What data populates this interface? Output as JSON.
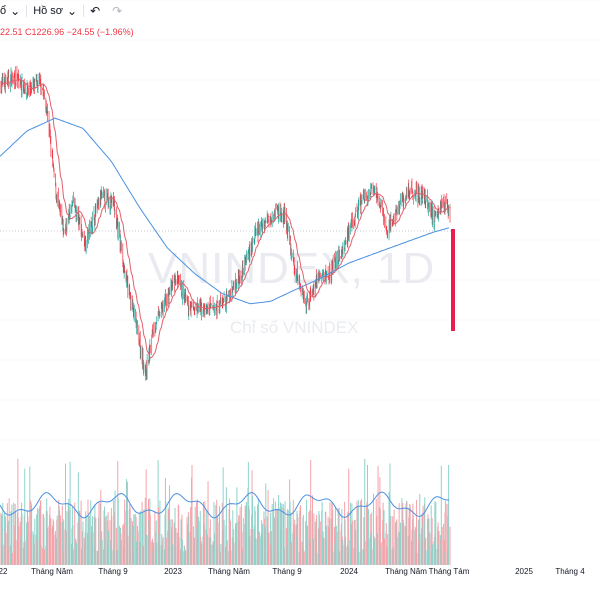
{
  "toolbar": {
    "interval_label": "ổ",
    "profile_label": "Hồ sơ"
  },
  "ohlc": {
    "prefix_value": "22.51",
    "close_label": "C1226.96",
    "change": "−24.55 (−1.96%)"
  },
  "watermark": {
    "symbol": "VNINDEX, 1D",
    "description": "Chỉ số VNINDEX"
  },
  "colors": {
    "up": "#26a69a",
    "down": "#f23645",
    "ma_short": "#e0606b",
    "ma_long": "#4a90e2",
    "volume_ma": "#4a90e2",
    "grid": "#e0e3eb",
    "current_marker": "#e91e4d"
  },
  "chart_data": {
    "type": "candlestick",
    "symbol": "VNINDEX",
    "interval": "1D",
    "x_ticks": [
      "22",
      "Tháng Năm",
      "Tháng 9",
      "2023",
      "Tháng Năm",
      "Tháng 9",
      "2024",
      "Tháng Năm",
      "Tháng Tám",
      "2025",
      "Tháng 4"
    ],
    "last_close": 1226.96,
    "change": -24.55,
    "change_pct": -1.96,
    "price_path": [
      {
        "date": "2022-01-01",
        "price": 1490
      },
      {
        "date": "2022-02-01",
        "price": 1505
      },
      {
        "date": "2022-03-01",
        "price": 1480
      },
      {
        "date": "2022-04-01",
        "price": 1495
      },
      {
        "date": "2022-04-15",
        "price": 1430
      },
      {
        "date": "2022-05-01",
        "price": 1290
      },
      {
        "date": "2022-05-20",
        "price": 1200
      },
      {
        "date": "2022-06-10",
        "price": 1260
      },
      {
        "date": "2022-07-05",
        "price": 1180
      },
      {
        "date": "2022-08-10",
        "price": 1270
      },
      {
        "date": "2022-09-05",
        "price": 1260
      },
      {
        "date": "2022-10-05",
        "price": 1100
      },
      {
        "date": "2022-10-25",
        "price": 1020
      },
      {
        "date": "2022-11-15",
        "price": 920
      },
      {
        "date": "2022-12-01",
        "price": 1010
      },
      {
        "date": "2022-12-25",
        "price": 1060
      },
      {
        "date": "2023-01-20",
        "price": 1110
      },
      {
        "date": "2023-02-15",
        "price": 1055
      },
      {
        "date": "2023-03-10",
        "price": 1050
      },
      {
        "date": "2023-04-10",
        "price": 1050
      },
      {
        "date": "2023-05-10",
        "price": 1065
      },
      {
        "date": "2023-06-10",
        "price": 1120
      },
      {
        "date": "2023-07-15",
        "price": 1200
      },
      {
        "date": "2023-08-25",
        "price": 1245
      },
      {
        "date": "2023-09-15",
        "price": 1230
      },
      {
        "date": "2023-10-05",
        "price": 1130
      },
      {
        "date": "2023-11-01",
        "price": 1060
      },
      {
        "date": "2023-11-25",
        "price": 1110
      },
      {
        "date": "2023-12-20",
        "price": 1120
      },
      {
        "date": "2024-01-20",
        "price": 1170
      },
      {
        "date": "2024-03-01",
        "price": 1265
      },
      {
        "date": "2024-04-01",
        "price": 1280
      },
      {
        "date": "2024-04-25",
        "price": 1200
      },
      {
        "date": "2024-05-25",
        "price": 1260
      },
      {
        "date": "2024-06-15",
        "price": 1285
      },
      {
        "date": "2024-07-15",
        "price": 1270
      },
      {
        "date": "2024-08-05",
        "price": 1230
      },
      {
        "date": "2024-08-20",
        "price": 1260
      },
      {
        "date": "2024-09-05",
        "price": 1251.5
      },
      {
        "date": "2024-09-09",
        "price": 1226.96
      }
    ],
    "ma_long_path": [
      {
        "date": "2022-01-01",
        "price": 1350
      },
      {
        "date": "2022-03-01",
        "price": 1400
      },
      {
        "date": "2022-05-01",
        "price": 1425
      },
      {
        "date": "2022-07-01",
        "price": 1405
      },
      {
        "date": "2022-09-01",
        "price": 1340
      },
      {
        "date": "2022-11-01",
        "price": 1250
      },
      {
        "date": "2023-01-01",
        "price": 1170
      },
      {
        "date": "2023-03-01",
        "price": 1120
      },
      {
        "date": "2023-05-01",
        "price": 1080
      },
      {
        "date": "2023-07-01",
        "price": 1060
      },
      {
        "date": "2023-08-15",
        "price": 1065
      },
      {
        "date": "2023-10-01",
        "price": 1085
      },
      {
        "date": "2023-12-01",
        "price": 1110
      },
      {
        "date": "2024-02-01",
        "price": 1140
      },
      {
        "date": "2024-04-01",
        "price": 1160
      },
      {
        "date": "2024-06-01",
        "price": 1180
      },
      {
        "date": "2024-08-01",
        "price": 1200
      },
      {
        "date": "2024-09-09",
        "price": 1210
      }
    ]
  }
}
